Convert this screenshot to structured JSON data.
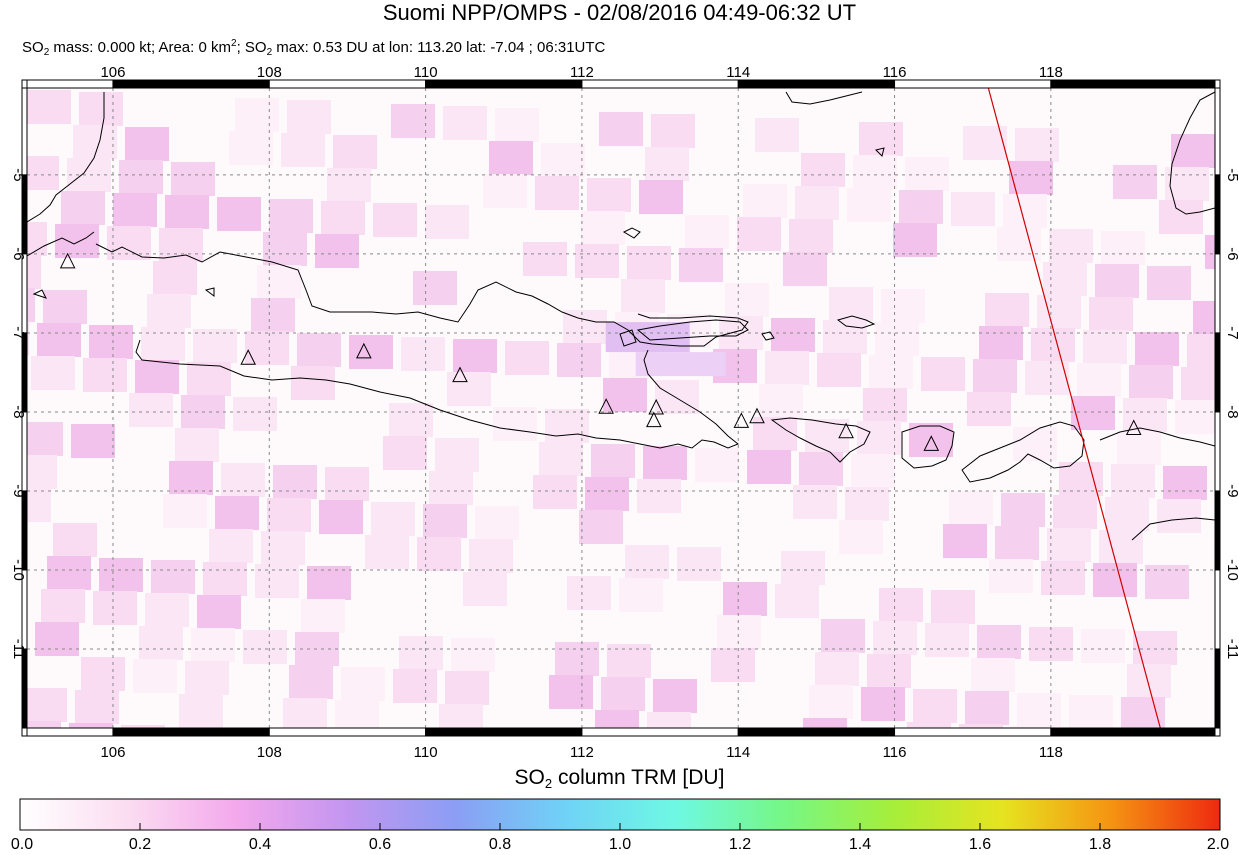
{
  "header": {
    "title": "Suomi NPP/OMPS - 02/08/2016 04:49-06:32 UT",
    "subtitle_parts": {
      "p1": "SO",
      "p1_sub": "2",
      "p2": " mass: 0.000 kt; Area: 0 km",
      "p2_sup": "2",
      "p3": "; SO",
      "p3_sub": "2",
      "p4": " max: 0.53 DU at lon: 113.20 lat: -7.04 ; 06:31UTC"
    }
  },
  "map": {
    "lon_range": [
      104.9,
      120.1
    ],
    "lat_range": [
      -12.0,
      -3.9
    ],
    "lon_ticks": [
      106,
      108,
      110,
      112,
      114,
      116,
      118
    ],
    "lon_tick_labels": [
      "106",
      "108",
      "110",
      "112",
      "114",
      "116",
      "118"
    ],
    "lat_ticks": [
      -5,
      -6,
      -7,
      -8,
      -9,
      -10,
      -11
    ],
    "lat_tick_labels": [
      "-5",
      "-6",
      "-7",
      "-8",
      "-9",
      "-10",
      "-11"
    ],
    "grid": true,
    "orbit_line": {
      "color": "#d00000",
      "from": [
        117.2,
        -3.9
      ],
      "to": [
        119.4,
        -12.0
      ]
    },
    "volcano_markers": [
      {
        "lon": 105.42,
        "lat": -6.1
      },
      {
        "lon": 107.73,
        "lat": -7.32
      },
      {
        "lon": 109.21,
        "lat": -7.24
      },
      {
        "lon": 110.44,
        "lat": -7.54
      },
      {
        "lon": 112.31,
        "lat": -7.94
      },
      {
        "lon": 112.95,
        "lat": -7.95
      },
      {
        "lon": 112.92,
        "lat": -8.11
      },
      {
        "lon": 114.04,
        "lat": -8.12
      },
      {
        "lon": 114.24,
        "lat": -8.06
      },
      {
        "lon": 115.38,
        "lat": -8.25
      },
      {
        "lon": 116.47,
        "lat": -8.41
      },
      {
        "lon": 119.06,
        "lat": -8.21
      }
    ],
    "so2_max_cell": {
      "lon": 113.2,
      "lat": -7.04,
      "value": 0.53
    }
  },
  "colorbar": {
    "title_pre": "SO",
    "title_sub": "2",
    "title_post": " column TRM [DU]",
    "min": 0.0,
    "max": 2.0,
    "ticks": [
      "0.0",
      "0.2",
      "0.4",
      "0.6",
      "0.8",
      "1.0",
      "1.2",
      "1.4",
      "1.6",
      "1.8",
      "2.0"
    ],
    "stops": [
      "#ffffff",
      "#fbdcf1",
      "#f3a8ec",
      "#c296f0",
      "#8b9ef4",
      "#6fd2f6",
      "#6ef8e4",
      "#76f786",
      "#a6ee3a",
      "#e6e420",
      "#f59412",
      "#ee2a10"
    ]
  }
}
